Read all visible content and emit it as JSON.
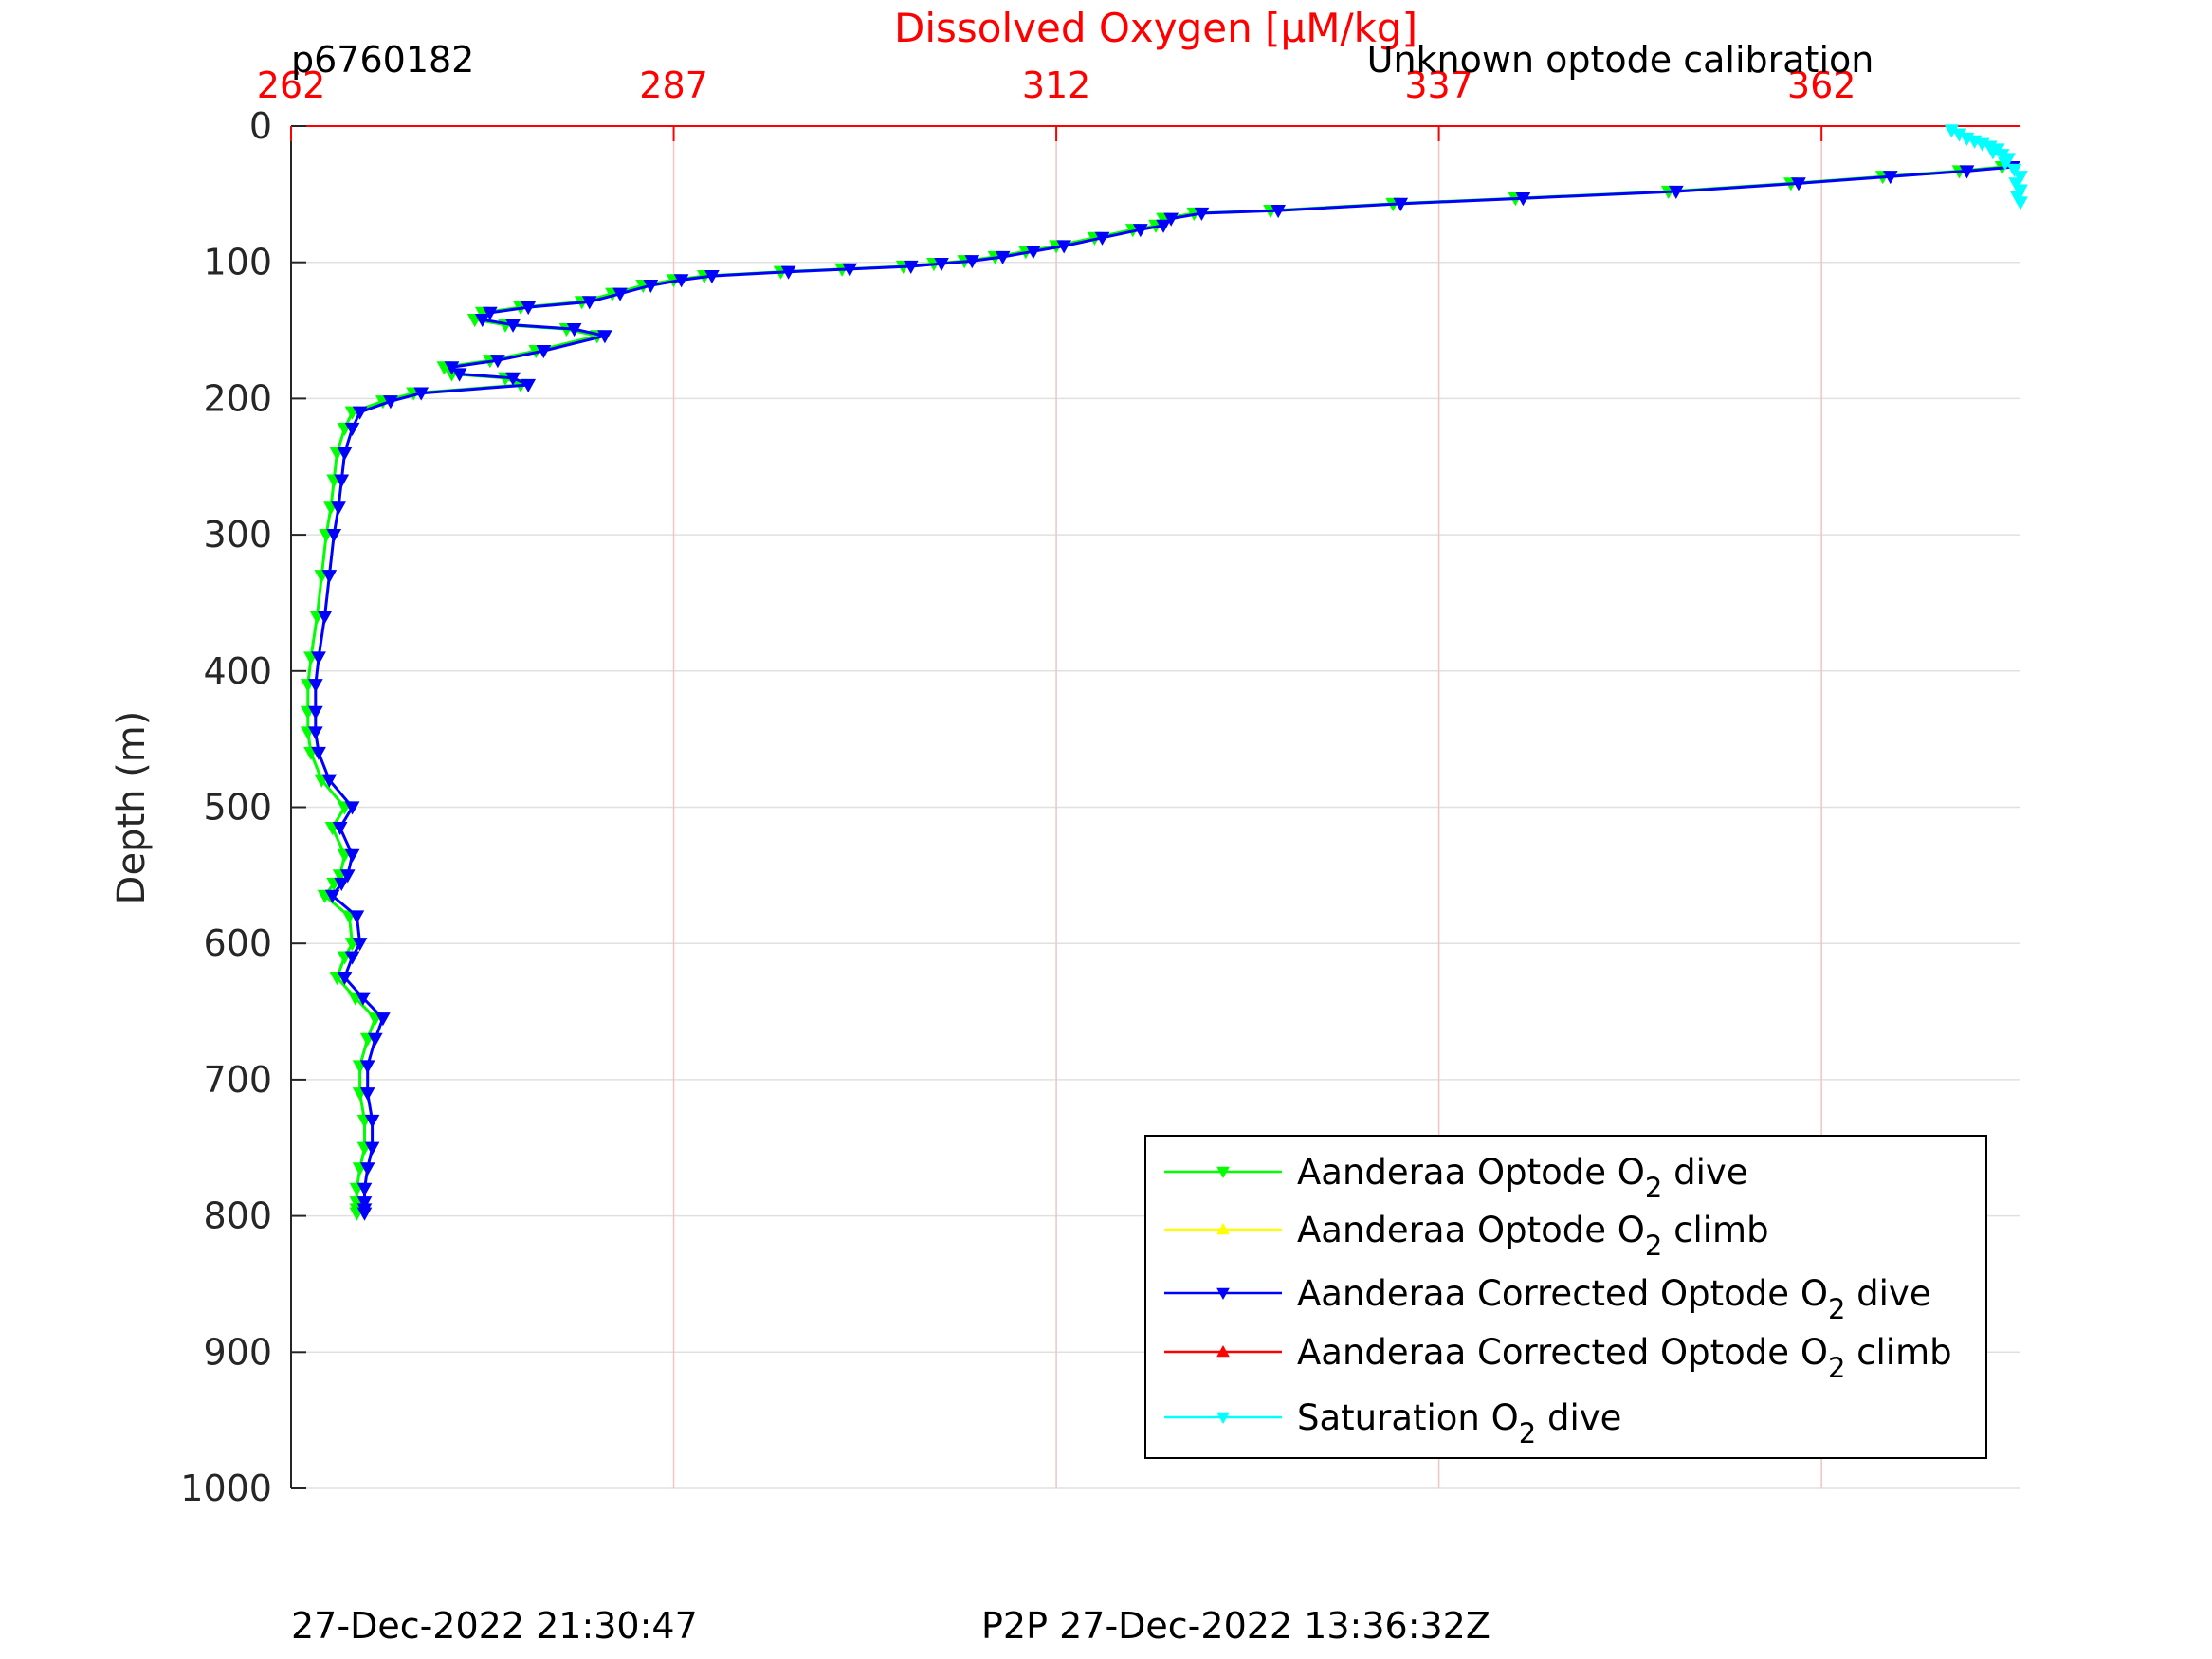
{
  "chart_data": {
    "type": "line",
    "glider_id": "p6760182",
    "title": "Dissolved Oxygen [μM/kg]",
    "subtitle": "Unknown optode calibration",
    "xlabel": "Dissolved Oxygen [μM/kg]",
    "ylabel": "Depth (m)",
    "xlim": [
      262,
      375
    ],
    "ylim": [
      0,
      1000
    ],
    "y_reversed": true,
    "x_axis_position": "top",
    "xticks": [
      262,
      287,
      312,
      337,
      362
    ],
    "xtick_labels": [
      "262",
      "287",
      "312",
      "337",
      "362"
    ],
    "yticks": [
      0,
      100,
      200,
      300,
      400,
      500,
      600,
      700,
      800,
      900,
      1000
    ],
    "ytick_labels": [
      "0",
      "100",
      "200",
      "300",
      "400",
      "500",
      "600",
      "700",
      "800",
      "900",
      "1000"
    ],
    "grid": true,
    "legend_position": "bottom-right",
    "colors": {
      "x_axis": "#ff0000",
      "grid_x": "#f2c4c4",
      "grid_y": "#e0e0e0",
      "text": "#262626"
    },
    "series": [
      {
        "name": "Aanderaa Optode O2 dive",
        "color": "#00ff00",
        "marker": "down-triangle",
        "x": [
          373.8,
          371,
          366,
          360,
          352,
          342,
          334,
          326,
          321,
          319,
          318.5,
          317,
          314.5,
          312,
          310,
          308,
          306,
          304,
          302,
          298,
          294,
          289,
          287,
          285,
          283,
          281,
          277,
          274.5,
          274,
          276,
          280,
          282,
          278,
          275,
          272,
          272.5,
          276,
          277,
          270,
          268,
          266,
          265.5,
          265,
          264.8,
          264.6,
          264.3,
          264,
          263.7,
          263.3,
          263.1,
          263.1,
          263.1,
          263.3,
          264,
          265.5,
          264.7,
          265.5,
          265.2,
          264.8,
          264.2,
          265.8,
          266,
          265.5,
          265,
          266.2,
          267.5,
          267,
          266.5,
          266.5,
          266.8,
          266.8,
          266.5,
          266.3,
          266.3,
          266.3,
          266.3
        ],
        "y": [
          30,
          33,
          37,
          42,
          48,
          53,
          57,
          62,
          64,
          68,
          73,
          76,
          82,
          88,
          92,
          96,
          99,
          101,
          103,
          105,
          107,
          110,
          113,
          117,
          123,
          129,
          133,
          137,
          142,
          146,
          149,
          154,
          165,
          172,
          177,
          182,
          185,
          190,
          196,
          202,
          210,
          222,
          240,
          260,
          280,
          300,
          330,
          360,
          390,
          410,
          430,
          445,
          460,
          480,
          500,
          515,
          535,
          550,
          556,
          565,
          580,
          600,
          610,
          625,
          640,
          655,
          670,
          690,
          710,
          730,
          750,
          765,
          780,
          790,
          795,
          798
        ]
      },
      {
        "name": "Aanderaa Optode O2 climb",
        "color": "#ffff00",
        "marker": "up-triangle",
        "x": [],
        "y": []
      },
      {
        "name": "Aanderaa Corrected Optode O2 dive",
        "color": "#0000ff",
        "marker": "down-triangle",
        "x": [
          374.5,
          371.5,
          366.5,
          360.5,
          352.5,
          342.5,
          334.5,
          326.5,
          321.5,
          319.5,
          319,
          317.5,
          315,
          312.5,
          310.5,
          308.5,
          306.5,
          304.5,
          302.5,
          298.5,
          294.5,
          289.5,
          287.5,
          285.5,
          283.5,
          281.5,
          277.5,
          275,
          274.5,
          276.5,
          280.5,
          282.5,
          278.5,
          275.5,
          272.5,
          273,
          276.5,
          277.5,
          270.5,
          268.5,
          266.5,
          266,
          265.5,
          265.3,
          265.1,
          264.8,
          264.5,
          264.2,
          263.8,
          263.6,
          263.6,
          263.6,
          263.8,
          264.5,
          266,
          265.2,
          266,
          265.7,
          265.3,
          264.7,
          266.3,
          266.5,
          266,
          265.5,
          266.7,
          268,
          267.5,
          267,
          267,
          267.3,
          267.3,
          267,
          266.8,
          266.8,
          266.8,
          266.8
        ],
        "y": [
          30,
          33,
          37,
          42,
          48,
          53,
          57,
          62,
          64,
          68,
          73,
          76,
          82,
          88,
          92,
          96,
          99,
          101,
          103,
          105,
          107,
          110,
          113,
          117,
          123,
          129,
          133,
          137,
          142,
          146,
          149,
          154,
          165,
          172,
          177,
          182,
          185,
          190,
          196,
          202,
          210,
          222,
          240,
          260,
          280,
          300,
          330,
          360,
          390,
          410,
          430,
          445,
          460,
          480,
          500,
          515,
          535,
          550,
          556,
          565,
          580,
          600,
          610,
          625,
          640,
          655,
          670,
          690,
          710,
          730,
          750,
          765,
          780,
          790,
          795,
          798
        ]
      },
      {
        "name": "Aanderaa Corrected Optode O2 climb",
        "color": "#ff0000",
        "marker": "up-triangle",
        "x": [],
        "y": []
      },
      {
        "name": "Saturation O2 dive",
        "color": "#00ffff",
        "marker": "down-triangle",
        "x": [
          370.5,
          371,
          371.5,
          372,
          372.5,
          373,
          373.5,
          373.2,
          373.8,
          374.2,
          374,
          374.6,
          375,
          374.7,
          375,
          374.8,
          375
        ],
        "y": [
          3,
          6,
          9,
          11,
          13,
          15,
          17,
          19,
          21,
          24,
          27,
          32,
          37,
          42,
          47,
          52,
          56
        ]
      }
    ],
    "legend_labels": [
      {
        "pre": "Aanderaa Optode O",
        "sub": "2",
        "post": " dive"
      },
      {
        "pre": "Aanderaa Optode O",
        "sub": "2",
        "post": " climb"
      },
      {
        "pre": "Aanderaa Corrected Optode O",
        "sub": "2",
        "post": " dive"
      },
      {
        "pre": "Aanderaa Corrected Optode O",
        "sub": "2",
        "post": " climb"
      },
      {
        "pre": "Saturation O",
        "sub": "2",
        "post": " dive"
      }
    ]
  },
  "footer": {
    "timestamp": "27-Dec-2022 21:30:47",
    "p2p": "P2P 27-Dec-2022 13:36:32Z"
  }
}
